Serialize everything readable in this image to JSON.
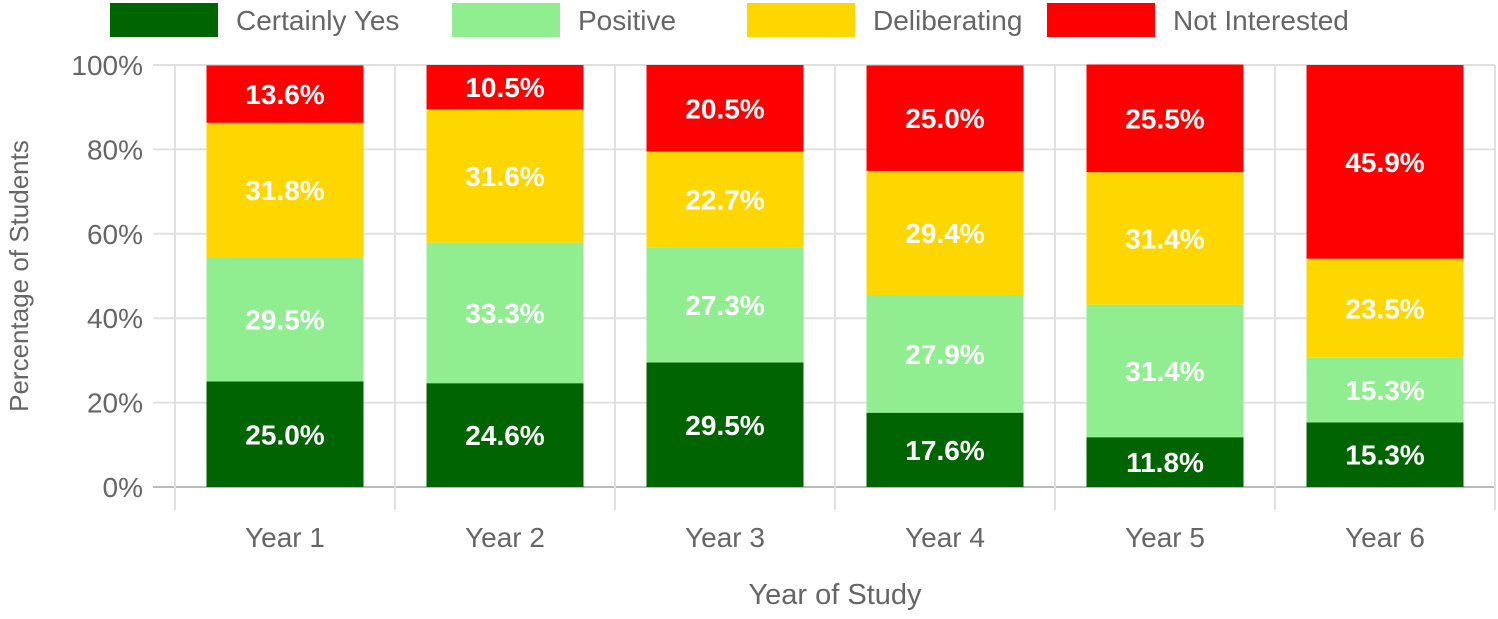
{
  "chart_data": {
    "type": "bar",
    "stacked": true,
    "categories": [
      "Year 1",
      "Year 2",
      "Year 3",
      "Year 4",
      "Year 5",
      "Year 6"
    ],
    "series": [
      {
        "name": "Certainly Yes",
        "color": "#006400",
        "values": [
          25.0,
          24.6,
          29.5,
          17.6,
          11.8,
          15.3
        ]
      },
      {
        "name": "Positive",
        "color": "#90EE90",
        "values": [
          29.5,
          33.3,
          27.3,
          27.9,
          31.4,
          15.3
        ]
      },
      {
        "name": "Deliberating",
        "color": "#FFD700",
        "values": [
          31.8,
          31.6,
          22.7,
          29.4,
          31.4,
          23.5
        ]
      },
      {
        "name": "Not Interested",
        "color": "#FF0000",
        "values": [
          13.6,
          10.5,
          20.5,
          25.0,
          25.5,
          45.9
        ]
      }
    ],
    "xlabel": "Year of Study",
    "ylabel": "Percentage of Students",
    "ylim": [
      0,
      100
    ],
    "yticks": [
      "0%",
      "20%",
      "40%",
      "60%",
      "80%",
      "100%"
    ],
    "grid": true,
    "legend": "top"
  }
}
